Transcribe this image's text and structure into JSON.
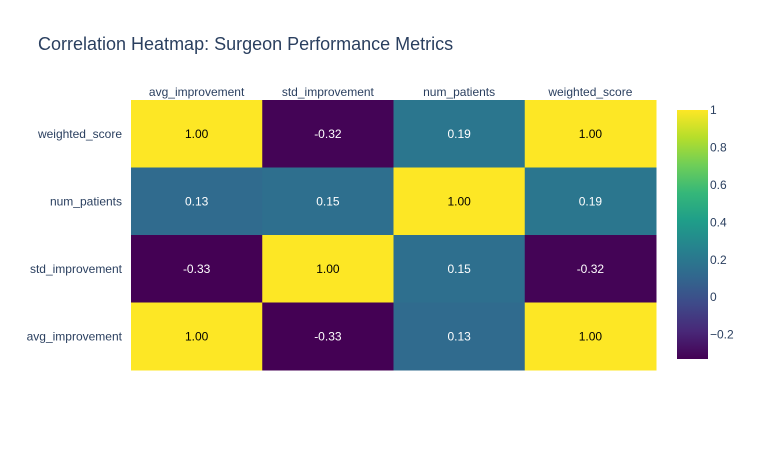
{
  "chart_data": {
    "type": "heatmap",
    "title": "Correlation Heatmap: Surgeon Performance Metrics",
    "x_categories": [
      "avg_improvement",
      "std_improvement",
      "num_patients",
      "weighted_score"
    ],
    "y_categories": [
      "weighted_score",
      "num_patients",
      "std_improvement",
      "avg_improvement"
    ],
    "values": [
      [
        1.0,
        -0.32,
        0.19,
        1.0
      ],
      [
        0.13,
        0.15,
        1.0,
        0.19
      ],
      [
        -0.33,
        1.0,
        0.15,
        -0.32
      ],
      [
        1.0,
        -0.33,
        0.13,
        1.0
      ]
    ],
    "value_labels": [
      [
        "1.00",
        "-0.32",
        "0.19",
        "1.00"
      ],
      [
        "0.13",
        "0.15",
        "1.00",
        "0.19"
      ],
      [
        "-0.33",
        "1.00",
        "0.15",
        "-0.32"
      ],
      [
        "1.00",
        "-0.33",
        "0.13",
        "1.00"
      ]
    ],
    "x_axis_position": "top",
    "colorscale": "Viridis",
    "zrange": [
      -0.33,
      1.0
    ],
    "colorbar": {
      "tick_values": [
        1,
        0.8,
        0.6,
        0.4,
        0.2,
        0,
        -0.2
      ],
      "tick_labels": [
        "1",
        "0.8",
        "0.6",
        "0.4",
        "0.2",
        "0",
        "−0.2"
      ]
    },
    "grid": false
  }
}
